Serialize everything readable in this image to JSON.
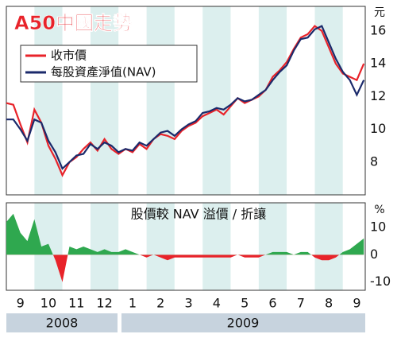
{
  "chart_data": [
    {
      "type": "line",
      "title": "A50中國走勢",
      "y_unit": "元",
      "x": [
        8.5,
        8.75,
        9,
        9.25,
        9.5,
        9.75,
        10,
        10.25,
        10.5,
        10.75,
        11,
        11.25,
        11.5,
        11.75,
        12,
        12.25,
        12.5,
        12.75,
        13,
        13.25,
        13.5,
        13.75,
        14,
        14.25,
        14.5,
        14.75,
        15,
        15.25,
        15.5,
        15.75,
        16,
        16.25,
        16.5,
        16.75,
        17,
        17.25,
        17.5,
        17.75,
        18,
        18.25,
        18.5,
        18.75,
        19,
        19.25,
        19.5,
        19.75,
        20,
        20.25,
        20.5,
        20.75,
        21,
        21.25
      ],
      "series": [
        {
          "name": "收市價",
          "color": "#e8232a",
          "values": [
            11.6,
            11.5,
            10.3,
            9.2,
            11.2,
            10.4,
            9.0,
            8.2,
            7.2,
            8.0,
            8.3,
            8.8,
            9.2,
            8.7,
            9.4,
            8.8,
            8.5,
            8.8,
            8.6,
            9.1,
            8.8,
            9.4,
            9.7,
            9.6,
            9.4,
            9.9,
            10.2,
            10.4,
            10.8,
            11.0,
            11.2,
            10.9,
            11.4,
            11.9,
            11.6,
            11.8,
            12.0,
            12.4,
            13.2,
            13.6,
            14.1,
            14.9,
            15.6,
            15.8,
            16.3,
            16.0,
            15.0,
            14.0,
            13.4,
            13.2,
            13.0,
            14.0
          ]
        },
        {
          "name": "每股資產淨值(NAV)",
          "color": "#1b2a6b",
          "values": [
            10.6,
            10.6,
            10.0,
            9.3,
            10.6,
            10.4,
            9.3,
            8.6,
            7.6,
            8.0,
            8.4,
            8.5,
            9.1,
            8.8,
            9.2,
            9.0,
            8.6,
            8.8,
            8.7,
            9.2,
            9.0,
            9.4,
            9.8,
            9.9,
            9.6,
            10.0,
            10.3,
            10.5,
            11.0,
            11.1,
            11.3,
            11.2,
            11.5,
            11.9,
            11.7,
            11.8,
            12.1,
            12.4,
            13.0,
            13.5,
            13.9,
            14.8,
            15.5,
            15.6,
            16.1,
            16.3,
            15.3,
            14.3,
            13.5,
            13.0,
            12.1,
            13.0
          ]
        }
      ],
      "xlim": [
        8.5,
        21.3
      ],
      "ylim": [
        6,
        17.5
      ],
      "yticks": [
        8,
        10,
        12,
        14,
        16
      ]
    },
    {
      "type": "area",
      "title": "股價較 NAV 溢價 / 折讓",
      "y_unit": "%",
      "x": [
        8.5,
        8.75,
        9,
        9.25,
        9.5,
        9.75,
        10,
        10.25,
        10.5,
        10.75,
        11,
        11.25,
        11.5,
        11.75,
        12,
        12.25,
        12.5,
        12.75,
        13,
        13.25,
        13.5,
        13.75,
        14,
        14.25,
        14.5,
        14.75,
        15,
        15.25,
        15.5,
        15.75,
        16,
        16.25,
        16.5,
        16.75,
        17,
        17.25,
        17.5,
        17.75,
        18,
        18.25,
        18.5,
        18.75,
        19,
        19.25,
        19.5,
        19.75,
        20,
        20.25,
        20.5,
        20.75,
        21,
        21.25
      ],
      "values": [
        12,
        15,
        8,
        5,
        13,
        3,
        4,
        -2,
        -10,
        3,
        2,
        3,
        2,
        1,
        2,
        1,
        1,
        2,
        1,
        0,
        -1,
        0,
        -1,
        -2,
        -1,
        -1,
        -1,
        -1,
        -1,
        -1,
        -1,
        -1,
        -1,
        0,
        -1,
        -1,
        -1,
        0,
        1,
        1,
        1,
        0,
        1,
        1,
        -1,
        -2,
        -2,
        -1,
        1,
        2,
        4,
        6
      ],
      "positive_color": "#2fa84f",
      "negative_color": "#e8232a",
      "xlim": [
        8.5,
        21.3
      ],
      "ylim": [
        -13,
        19
      ],
      "yticks": [
        -10,
        0,
        10
      ],
      "xticks": [
        9,
        10,
        11,
        12,
        {
          "value": 13,
          "label": "1"
        },
        {
          "value": 14,
          "label": "2"
        },
        {
          "value": 15,
          "label": "3"
        },
        {
          "value": 16,
          "label": "4"
        },
        {
          "value": 17,
          "label": "5"
        },
        {
          "value": 18,
          "label": "6"
        },
        {
          "value": 19,
          "label": "7"
        },
        {
          "value": 20,
          "label": "8"
        },
        {
          "value": 21,
          "label": "9"
        }
      ],
      "years": [
        "2008",
        "2009"
      ]
    }
  ]
}
